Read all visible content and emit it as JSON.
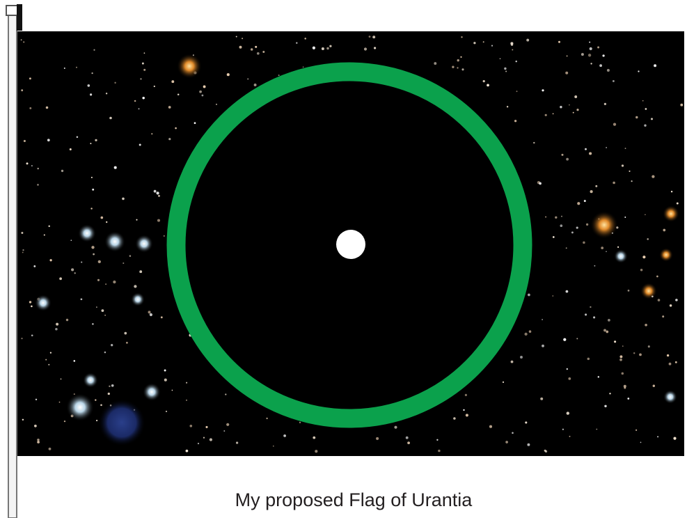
{
  "caption": "My proposed Flag of Urantia"
}
